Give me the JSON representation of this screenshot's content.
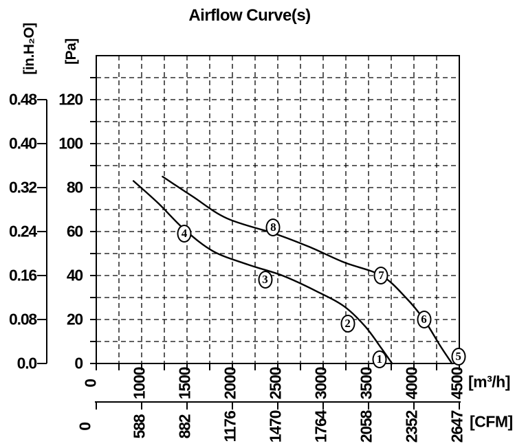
{
  "title": "Airflow Curve(s)",
  "axes": {
    "pa": {
      "title": "[Pa]",
      "tick_labels": [
        "120",
        "100",
        "80",
        "60",
        "40",
        "20",
        "0"
      ]
    },
    "inh2o": {
      "title": "[in.H₂O]",
      "tick_labels": [
        "0.48",
        "0.40",
        "0.32",
        "0.24",
        "0.16",
        "0.08",
        "0.0"
      ]
    },
    "m3h": {
      "title": "[m³/h]",
      "tick_labels": [
        "0",
        "1000",
        "1500",
        "2000",
        "2500",
        "3000",
        "3500",
        "4000",
        "4500"
      ]
    },
    "cfm": {
      "title": "[CFM]",
      "tick_labels": [
        "0",
        "588",
        "882",
        "1176",
        "1470",
        "1764",
        "2058",
        "2352",
        "2647"
      ]
    }
  },
  "chart_data": {
    "type": "line",
    "title": "Airflow Curve(s)",
    "grid": "dashed minor grid, solid outer border",
    "x_axis": {
      "label": "[m³/h]",
      "ticks": [
        0,
        1000,
        1500,
        2000,
        2500,
        3000,
        3500,
        4000,
        4500
      ],
      "scale_note": "non-linear: 0-1000 spans two grid cells, each later grid cell = 250 m³/h",
      "secondary_label": "[CFM]",
      "secondary_ticks": [
        0,
        588,
        882,
        1176,
        1470,
        1764,
        2058,
        2352,
        2647
      ]
    },
    "y_axis": {
      "label": "[Pa]",
      "ticks": [
        0,
        20,
        40,
        60,
        80,
        100,
        120
      ],
      "plot_max": 140,
      "minor_step": 10,
      "secondary_label": "[in.H₂O]",
      "secondary_ticks": [
        0.0,
        0.08,
        0.16,
        0.24,
        0.32,
        0.4,
        0.48
      ]
    },
    "series": [
      {
        "name": "curve-1-2-3-4",
        "points_m3h_pa": [
          [
            820,
            83
          ],
          [
            1180,
            73
          ],
          [
            1470,
            61
          ],
          [
            1790,
            51
          ],
          [
            2170,
            45
          ],
          [
            2550,
            40
          ],
          [
            2920,
            33
          ],
          [
            3230,
            26
          ],
          [
            3460,
            17
          ],
          [
            3640,
            7
          ],
          [
            3760,
            0
          ]
        ]
      },
      {
        "name": "curve-5-6-7-8",
        "points_m3h_pa": [
          [
            1230,
            85
          ],
          [
            1560,
            76
          ],
          [
            1940,
            66
          ],
          [
            2470,
            59
          ],
          [
            2850,
            53
          ],
          [
            3230,
            46
          ],
          [
            3640,
            40
          ],
          [
            3910,
            30
          ],
          [
            4110,
            20
          ],
          [
            4290,
            8
          ],
          [
            4420,
            0
          ]
        ]
      }
    ],
    "annotations": [
      {
        "label": "1",
        "m3h": 3620,
        "pa": 2
      },
      {
        "label": "2",
        "m3h": 3270,
        "pa": 18
      },
      {
        "label": "3",
        "m3h": 2360,
        "pa": 38
      },
      {
        "label": "4",
        "m3h": 1470,
        "pa": 59
      },
      {
        "label": "5",
        "m3h": 4490,
        "pa": 3
      },
      {
        "label": "6",
        "m3h": 4110,
        "pa": 20
      },
      {
        "label": "7",
        "m3h": 3640,
        "pa": 40
      },
      {
        "label": "8",
        "m3h": 2450,
        "pa": 62
      }
    ]
  },
  "colors": {
    "ink": "#000000",
    "background": "#ffffff"
  }
}
